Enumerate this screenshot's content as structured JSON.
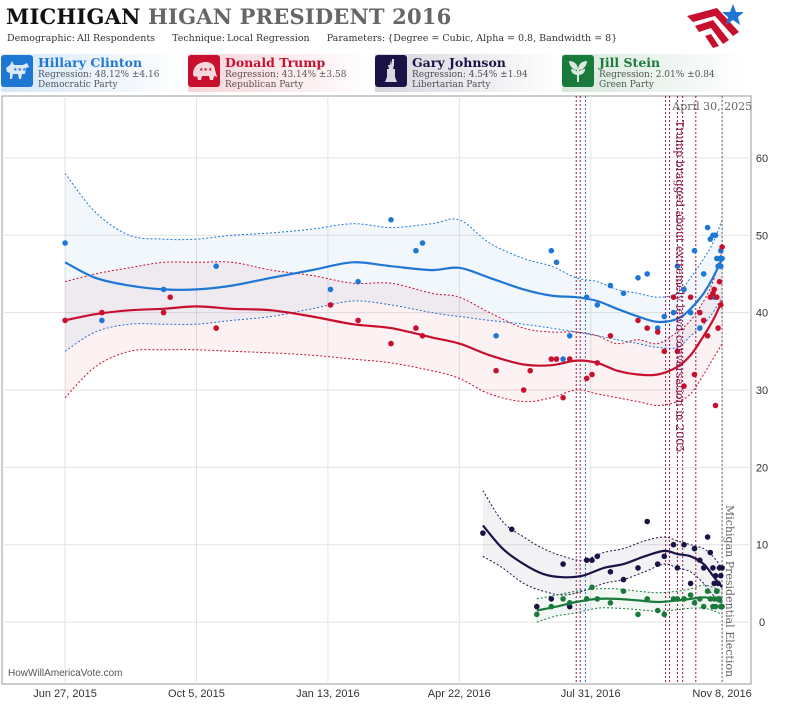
{
  "header": {
    "title_main": "MICHIGAN",
    "title_rest": "HIGAN PRESIDENT 2016",
    "demographic_label": "Demographic:",
    "demographic_value": "All Respondents",
    "technique_label": "Technique:",
    "technique_value": "Local Regression",
    "parameters_label": "Parameters:",
    "parameters_value": "{Degree = Cubic, Alpha = 0.8, Bandwidth = 8}"
  },
  "candidates": [
    {
      "name": "Hillary Clinton",
      "regression": "Regression: 48.12% ±4.16",
      "party": "Democratic Party",
      "color": "#1f77d4",
      "icon": "donkey-icon"
    },
    {
      "name": "Donald Trump",
      "regression": "Regression: 43.14% ±3.58",
      "party": "Republican Party",
      "color": "#c8102e",
      "icon": "elephant-icon"
    },
    {
      "name": "Gary Johnson",
      "regression": "Regression: 4.54% ±1.94",
      "party": "Libertarian Party",
      "color": "#1a1446",
      "icon": "liberty-icon"
    },
    {
      "name": "Jill Stein",
      "regression": "Regression: 2.01% ±0.84",
      "party": "Green Party",
      "color": "#1a7a3c",
      "icon": "leaf-icon"
    }
  ],
  "footer": "HowWillAmericaVote.com",
  "chart_data": {
    "type": "scatter",
    "title": "MICHIGAN HIGAN PRESIDENT 2016",
    "x_axis": {
      "type": "date",
      "range": [
        "2015-05-10",
        "2016-11-30"
      ],
      "ticks": [
        "2015-06-27",
        "2015-10-05",
        "2016-01-13",
        "2016-04-22",
        "2016-07-31",
        "2016-11-08"
      ],
      "tick_labels": [
        "Jun 27, 2015",
        "Oct 5, 2015",
        "Jan 13, 2016",
        "Apr 22, 2016",
        "Jul 31, 2016",
        "Nov 8, 2016"
      ]
    },
    "y_axis": {
      "range": [
        -8,
        68
      ],
      "ticks": [
        0,
        10,
        20,
        30,
        40,
        50,
        60
      ],
      "side": "right"
    },
    "grid": true,
    "annotations": [
      {
        "date": "2016-10-07",
        "text": "Trump bragged about extremely lewd conversation in 2005",
        "color": "#8b1a4a"
      },
      {
        "date": "2016-11-08",
        "text": "Michigan Presidential Election",
        "color": "#666666"
      },
      {
        "date": "2016-11-08",
        "text": "April 30, 2025",
        "color": "#666666"
      }
    ],
    "event_lines": [
      {
        "date": "2016-07-20",
        "color": "#8b1a4a"
      },
      {
        "date": "2016-07-23",
        "color": "#8b1a4a"
      },
      {
        "date": "2016-07-27",
        "color": "#1f77d4"
      },
      {
        "date": "2016-09-26",
        "color": "#8b1a4a"
      },
      {
        "date": "2016-09-29",
        "color": "#8b1a4a"
      },
      {
        "date": "2016-10-05",
        "color": "#8b1a4a"
      },
      {
        "date": "2016-10-09",
        "color": "#8b1a4a"
      },
      {
        "date": "2016-10-19",
        "color": "#8b1a4a"
      },
      {
        "date": "2016-11-08",
        "color": "#666666"
      }
    ],
    "series": [
      {
        "name": "Hillary Clinton",
        "color": "#1f77d4",
        "trend_x": [
          "2015-06-27",
          "2015-07-20",
          "2015-08-15",
          "2015-09-10",
          "2015-10-05",
          "2015-11-01",
          "2015-12-01",
          "2016-01-01",
          "2016-02-01",
          "2016-03-01",
          "2016-04-01",
          "2016-04-22",
          "2016-05-15",
          "2016-06-10",
          "2016-07-01",
          "2016-07-20",
          "2016-08-05",
          "2016-08-20",
          "2016-09-05",
          "2016-09-20",
          "2016-10-05",
          "2016-10-15",
          "2016-10-25",
          "2016-11-01",
          "2016-11-08"
        ],
        "trend": [
          46.5,
          44.5,
          43.5,
          43,
          43,
          43.5,
          44.5,
          45.5,
          46.5,
          46,
          45.5,
          45.8,
          44.5,
          43,
          42.2,
          42,
          41.5,
          40.5,
          39.5,
          38.8,
          39.2,
          40.5,
          42.5,
          44.5,
          47
        ],
        "upper": [
          58,
          53,
          50,
          49.5,
          49.5,
          50,
          50.3,
          50.8,
          51.5,
          51,
          51.5,
          52,
          49,
          47,
          46,
          44.5,
          44,
          43,
          42.5,
          42,
          42.5,
          44.5,
          47,
          49,
          52
        ],
        "lower": [
          35,
          37.5,
          38.5,
          38.5,
          38.5,
          39,
          39.5,
          40.5,
          41.5,
          41,
          40,
          39.5,
          39,
          38.5,
          38,
          37.5,
          37,
          36.5,
          36,
          35.5,
          35.5,
          37,
          38.5,
          40,
          42
        ],
        "points_x": [
          "2015-06-27",
          "2015-07-25",
          "2015-09-10",
          "2015-10-20",
          "2016-01-15",
          "2016-02-05",
          "2016-03-01",
          "2016-03-20",
          "2016-03-25",
          "2016-05-20",
          "2016-07-01",
          "2016-07-05",
          "2016-07-10",
          "2016-07-15",
          "2016-07-28",
          "2016-08-05",
          "2016-08-15",
          "2016-08-25",
          "2016-09-05",
          "2016-09-12",
          "2016-09-20",
          "2016-09-25",
          "2016-10-02",
          "2016-10-05",
          "2016-10-10",
          "2016-10-15",
          "2016-10-18",
          "2016-10-22",
          "2016-10-25",
          "2016-10-28",
          "2016-10-30",
          "2016-11-01",
          "2016-11-02",
          "2016-11-03",
          "2016-11-04",
          "2016-11-05",
          "2016-11-06",
          "2016-11-07",
          "2016-11-07",
          "2016-11-08"
        ],
        "points": [
          49,
          39,
          43,
          46,
          43,
          44,
          52,
          48,
          49,
          37,
          48,
          46.5,
          34,
          37,
          42,
          41,
          43.5,
          42.5,
          44.5,
          45,
          38,
          39.5,
          40,
          46,
          43,
          40,
          48,
          38,
          45,
          51,
          49.5,
          50,
          42,
          50,
          47,
          46,
          47,
          48,
          46,
          47
        ]
      },
      {
        "name": "Donald Trump",
        "color": "#c8102e",
        "trend_x": [
          "2015-06-27",
          "2015-07-20",
          "2015-08-15",
          "2015-09-10",
          "2015-10-05",
          "2015-11-01",
          "2015-12-01",
          "2016-01-01",
          "2016-02-01",
          "2016-03-01",
          "2016-04-01",
          "2016-04-22",
          "2016-05-15",
          "2016-06-10",
          "2016-07-01",
          "2016-07-20",
          "2016-08-05",
          "2016-08-20",
          "2016-09-05",
          "2016-09-20",
          "2016-10-05",
          "2016-10-15",
          "2016-10-25",
          "2016-11-01",
          "2016-11-08"
        ],
        "trend": [
          39,
          39.8,
          40.3,
          40.5,
          40.8,
          40.5,
          40.3,
          39.5,
          38.5,
          38,
          36.8,
          36,
          34.5,
          33.3,
          33.2,
          33.8,
          33.5,
          32.5,
          32,
          32,
          33,
          34.5,
          37,
          39,
          41.5
        ],
        "upper": [
          44,
          45,
          45.8,
          46.5,
          46.5,
          46.5,
          45.5,
          44.8,
          43.8,
          43.8,
          42.5,
          42,
          40,
          38,
          37.5,
          37.5,
          37,
          36,
          36.5,
          36,
          37.5,
          39,
          41.5,
          44,
          48
        ],
        "lower": [
          29,
          33,
          35,
          35.2,
          35.2,
          35,
          34.8,
          34.5,
          34,
          33.5,
          32.5,
          31.5,
          29.5,
          28.5,
          29,
          30,
          29.5,
          29,
          28.5,
          28,
          28.5,
          29.5,
          32,
          34,
          36
        ],
        "points_x": [
          "2015-06-27",
          "2015-07-25",
          "2015-09-10",
          "2015-09-15",
          "2015-10-20",
          "2016-01-15",
          "2016-02-05",
          "2016-03-01",
          "2016-03-20",
          "2016-03-25",
          "2016-05-20",
          "2016-06-10",
          "2016-06-15",
          "2016-07-01",
          "2016-07-05",
          "2016-07-10",
          "2016-07-15",
          "2016-07-28",
          "2016-08-01",
          "2016-08-05",
          "2016-08-15",
          "2016-09-05",
          "2016-09-12",
          "2016-09-20",
          "2016-09-25",
          "2016-10-02",
          "2016-10-05",
          "2016-10-10",
          "2016-10-15",
          "2016-10-18",
          "2016-10-22",
          "2016-10-25",
          "2016-10-28",
          "2016-10-30",
          "2016-11-01",
          "2016-11-02",
          "2016-11-03",
          "2016-11-04",
          "2016-11-05",
          "2016-11-06",
          "2016-11-07",
          "2016-11-08"
        ],
        "points": [
          39,
          40,
          40,
          42,
          38,
          41,
          39,
          36,
          38,
          37,
          32.5,
          30,
          32.5,
          34,
          34,
          29,
          34,
          31.5,
          32,
          33.5,
          37,
          39,
          38,
          37.5,
          35,
          42,
          35,
          30.5,
          42,
          32,
          40,
          39,
          37,
          42,
          42.5,
          43,
          28,
          42,
          38,
          44,
          41,
          48.5
        ]
      },
      {
        "name": "Gary Johnson",
        "color": "#1a1446",
        "trend_x": [
          "2016-05-10",
          "2016-05-25",
          "2016-06-10",
          "2016-06-25",
          "2016-07-10",
          "2016-07-25",
          "2016-08-10",
          "2016-08-25",
          "2016-09-10",
          "2016-09-25",
          "2016-10-05",
          "2016-10-15",
          "2016-10-25",
          "2016-11-01",
          "2016-11-08"
        ],
        "trend": [
          12.5,
          9.5,
          7.5,
          6.2,
          5.8,
          6,
          7,
          7.5,
          8.5,
          9.2,
          8.8,
          8.5,
          7.5,
          6,
          4.5
        ],
        "upper": [
          17,
          13,
          11,
          9.5,
          8.5,
          8,
          9,
          9.5,
          10.5,
          11,
          10.5,
          10,
          9.5,
          8.5,
          7
        ],
        "lower": [
          8.5,
          7,
          5,
          4,
          3.5,
          4,
          5,
          5.5,
          6.5,
          7.5,
          7,
          6.5,
          5,
          3.5,
          2.5
        ],
        "points_x": [
          "2016-05-10",
          "2016-06-01",
          "2016-06-20",
          "2016-07-01",
          "2016-07-10",
          "2016-07-15",
          "2016-07-28",
          "2016-08-01",
          "2016-08-05",
          "2016-08-15",
          "2016-08-25",
          "2016-09-05",
          "2016-09-12",
          "2016-09-20",
          "2016-09-25",
          "2016-10-02",
          "2016-10-05",
          "2016-10-10",
          "2016-10-15",
          "2016-10-18",
          "2016-10-22",
          "2016-10-25",
          "2016-10-28",
          "2016-10-30",
          "2016-11-01",
          "2016-11-02",
          "2016-11-03",
          "2016-11-04",
          "2016-11-05",
          "2016-11-06",
          "2016-11-07",
          "2016-11-08"
        ],
        "points": [
          11.5,
          12,
          2,
          3,
          7.5,
          2,
          8,
          8,
          8.5,
          6.5,
          5.5,
          7,
          13,
          7.5,
          8.5,
          10,
          7,
          10,
          5,
          9.5,
          8,
          7,
          11,
          9,
          7,
          5,
          6,
          4,
          5,
          7,
          6,
          7
        ]
      },
      {
        "name": "Jill Stein",
        "color": "#1a7a3c",
        "trend_x": [
          "2016-06-20",
          "2016-07-05",
          "2016-07-20",
          "2016-08-05",
          "2016-08-20",
          "2016-09-05",
          "2016-09-20",
          "2016-10-05",
          "2016-10-15",
          "2016-10-25",
          "2016-11-01",
          "2016-11-08"
        ],
        "trend": [
          1.5,
          2,
          2.6,
          3,
          3,
          2.8,
          2.6,
          2.8,
          3,
          3.2,
          3,
          2.5
        ],
        "upper": [
          3,
          3.5,
          4,
          4.3,
          4.3,
          4,
          3.8,
          4,
          4.3,
          4.8,
          4.5,
          4
        ],
        "lower": [
          0,
          0.8,
          1.2,
          1.8,
          1.8,
          1.6,
          1.4,
          1.6,
          1.8,
          1.8,
          1.5,
          1
        ],
        "points_x": [
          "2016-06-20",
          "2016-07-01",
          "2016-07-10",
          "2016-07-15",
          "2016-07-28",
          "2016-08-01",
          "2016-08-05",
          "2016-08-15",
          "2016-08-25",
          "2016-09-05",
          "2016-09-12",
          "2016-09-20",
          "2016-09-25",
          "2016-10-02",
          "2016-10-05",
          "2016-10-10",
          "2016-10-15",
          "2016-10-18",
          "2016-10-22",
          "2016-10-25",
          "2016-10-28",
          "2016-10-30",
          "2016-11-01",
          "2016-11-02",
          "2016-11-03",
          "2016-11-04",
          "2016-11-05",
          "2016-11-06",
          "2016-11-07",
          "2016-11-08"
        ],
        "points": [
          1,
          2,
          3,
          2.5,
          3,
          4.5,
          3,
          2.5,
          4,
          1,
          3,
          1.5,
          1,
          3,
          3,
          3,
          3.5,
          2.5,
          3,
          2,
          4,
          3,
          2,
          3,
          2,
          4,
          3,
          3,
          2,
          2
        ]
      }
    ]
  }
}
